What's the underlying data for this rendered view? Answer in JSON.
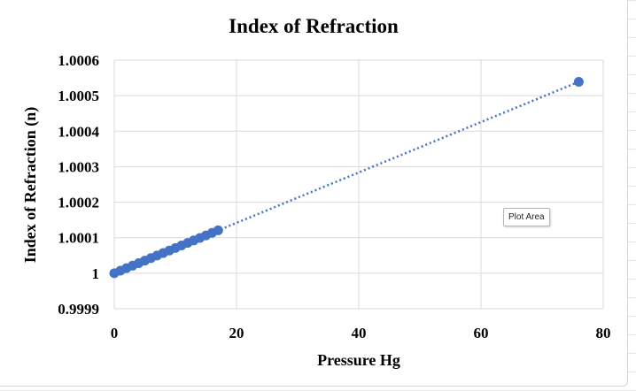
{
  "chart_data": {
    "type": "scatter",
    "title": "Index of Refraction",
    "xlabel": "Pressure Hg",
    "ylabel": "Index of Refraction (n)",
    "xlim": [
      0,
      80
    ],
    "ylim": [
      0.9999,
      1.0006
    ],
    "x_ticks": [
      "0",
      "20",
      "40",
      "60",
      "80"
    ],
    "x_tick_values": [
      0,
      20,
      40,
      60,
      80
    ],
    "y_ticks": [
      "1.0006",
      "1.0005",
      "1.0004",
      "1.0003",
      "1.0002",
      "1.0001",
      "1",
      "0.9999"
    ],
    "y_tick_values": [
      1.0006,
      1.0005,
      1.0004,
      1.0003,
      1.0002,
      1.0001,
      1.0,
      0.9999
    ],
    "grid": true,
    "trendline": {
      "style": "dotted",
      "from": [
        0,
        1.0
      ],
      "to": [
        76,
        1.000539
      ]
    },
    "series": [
      {
        "x": [
          0,
          1,
          2,
          3,
          4,
          5,
          6,
          7,
          8,
          9,
          10,
          11,
          12,
          13,
          14,
          15,
          16,
          17,
          76
        ],
        "y": [
          1.0,
          1.0000071,
          1.0000142,
          1.0000213,
          1.0000284,
          1.0000355,
          1.0000426,
          1.0000497,
          1.0000568,
          1.0000639,
          1.000071,
          1.0000781,
          1.0000852,
          1.0000923,
          1.0000994,
          1.0001065,
          1.0001136,
          1.0001207,
          1.000539
        ],
        "color": "#4472c4"
      }
    ]
  },
  "tooltip": {
    "label": "Plot Area"
  }
}
